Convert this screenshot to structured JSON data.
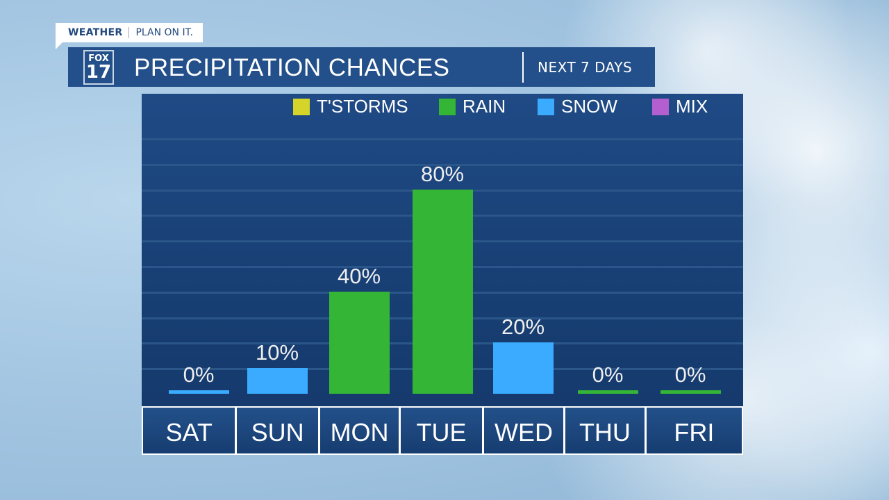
{
  "brand": {
    "tag_bold": "WEATHER",
    "tag_text": "PLAN ON IT.",
    "logo_top": "FOX",
    "logo_bottom": "17"
  },
  "header": {
    "title": "PRECIPITATION CHANCES",
    "subtitle": "NEXT 7 DAYS"
  },
  "colors": {
    "tstorms": "#d4d42a",
    "rain": "#34b536",
    "snow": "#3aabff",
    "mix": "#b45fcf",
    "panel": "#1a4478",
    "header": "#23508a"
  },
  "chart_data": {
    "type": "bar",
    "title": "PRECIPITATION CHANCES",
    "legend": [
      {
        "name": "T'STORMS",
        "color": "#d4d42a"
      },
      {
        "name": "RAIN",
        "color": "#34b536"
      },
      {
        "name": "SNOW",
        "color": "#3aabff"
      },
      {
        "name": "MIX",
        "color": "#b45fcf"
      }
    ],
    "legend_position": "top",
    "categories": [
      "SAT",
      "SUN",
      "MON",
      "TUE",
      "WED",
      "THU",
      "FRI"
    ],
    "values": [
      0,
      10,
      40,
      80,
      20,
      0,
      0
    ],
    "types": [
      "SNOW",
      "SNOW",
      "RAIN",
      "RAIN",
      "SNOW",
      "RAIN",
      "RAIN"
    ],
    "labels": [
      "0%",
      "10%",
      "40%",
      "80%",
      "20%",
      "0%",
      "0%"
    ],
    "ylim": [
      0,
      100
    ],
    "grid": true
  }
}
